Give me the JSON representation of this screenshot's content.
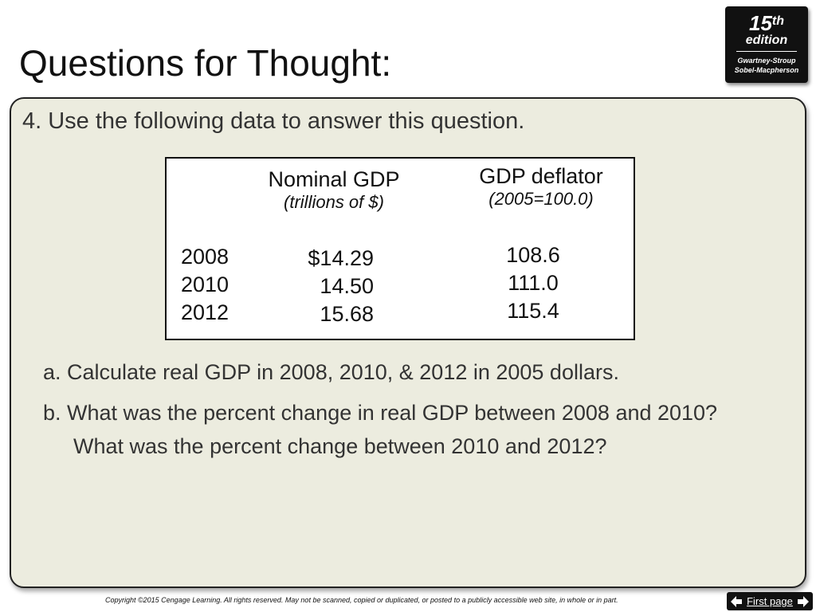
{
  "slide": {
    "title": "Questions for Thought:"
  },
  "badge": {
    "number": "15",
    "suffix": "th",
    "edition": "edition",
    "authors_line1": "Gwartney-Stroup",
    "authors_line2": "Sobel-Macpherson"
  },
  "question": {
    "intro": "4. Use the following data to answer this question.",
    "parts": [
      "a. Calculate real GDP in 2008, 2010, & 2012 in 2005 dollars.",
      "b. What was the percent change in real GDP between 2008 and 2010?  What was the percent change between 2010 and 2012?"
    ]
  },
  "table": {
    "headers": {
      "nominal": "Nominal GDP",
      "nominal_sub": "(trillions of $)",
      "deflator": "GDP deflator",
      "deflator_sub": "(2005=100.0)"
    },
    "rows": [
      {
        "year": "2008",
        "nominal": "$14.29",
        "deflator": "108.6"
      },
      {
        "year": "2010",
        "nominal": "14.50",
        "deflator": "111.0"
      },
      {
        "year": "2012",
        "nominal": "15.68",
        "deflator": "115.4"
      }
    ]
  },
  "footer": {
    "copyright": "Copyright ©2015 Cengage Learning. All rights reserved. May not be scanned, copied or duplicated, or posted to a publicly accessible web site, in whole or in part.",
    "first_page_label": "First page",
    "icons": [
      "arrow-left-icon",
      "arrow-right-icon"
    ]
  },
  "colors": {
    "panel_background": "#ececdf",
    "badge_background": "#111111"
  }
}
